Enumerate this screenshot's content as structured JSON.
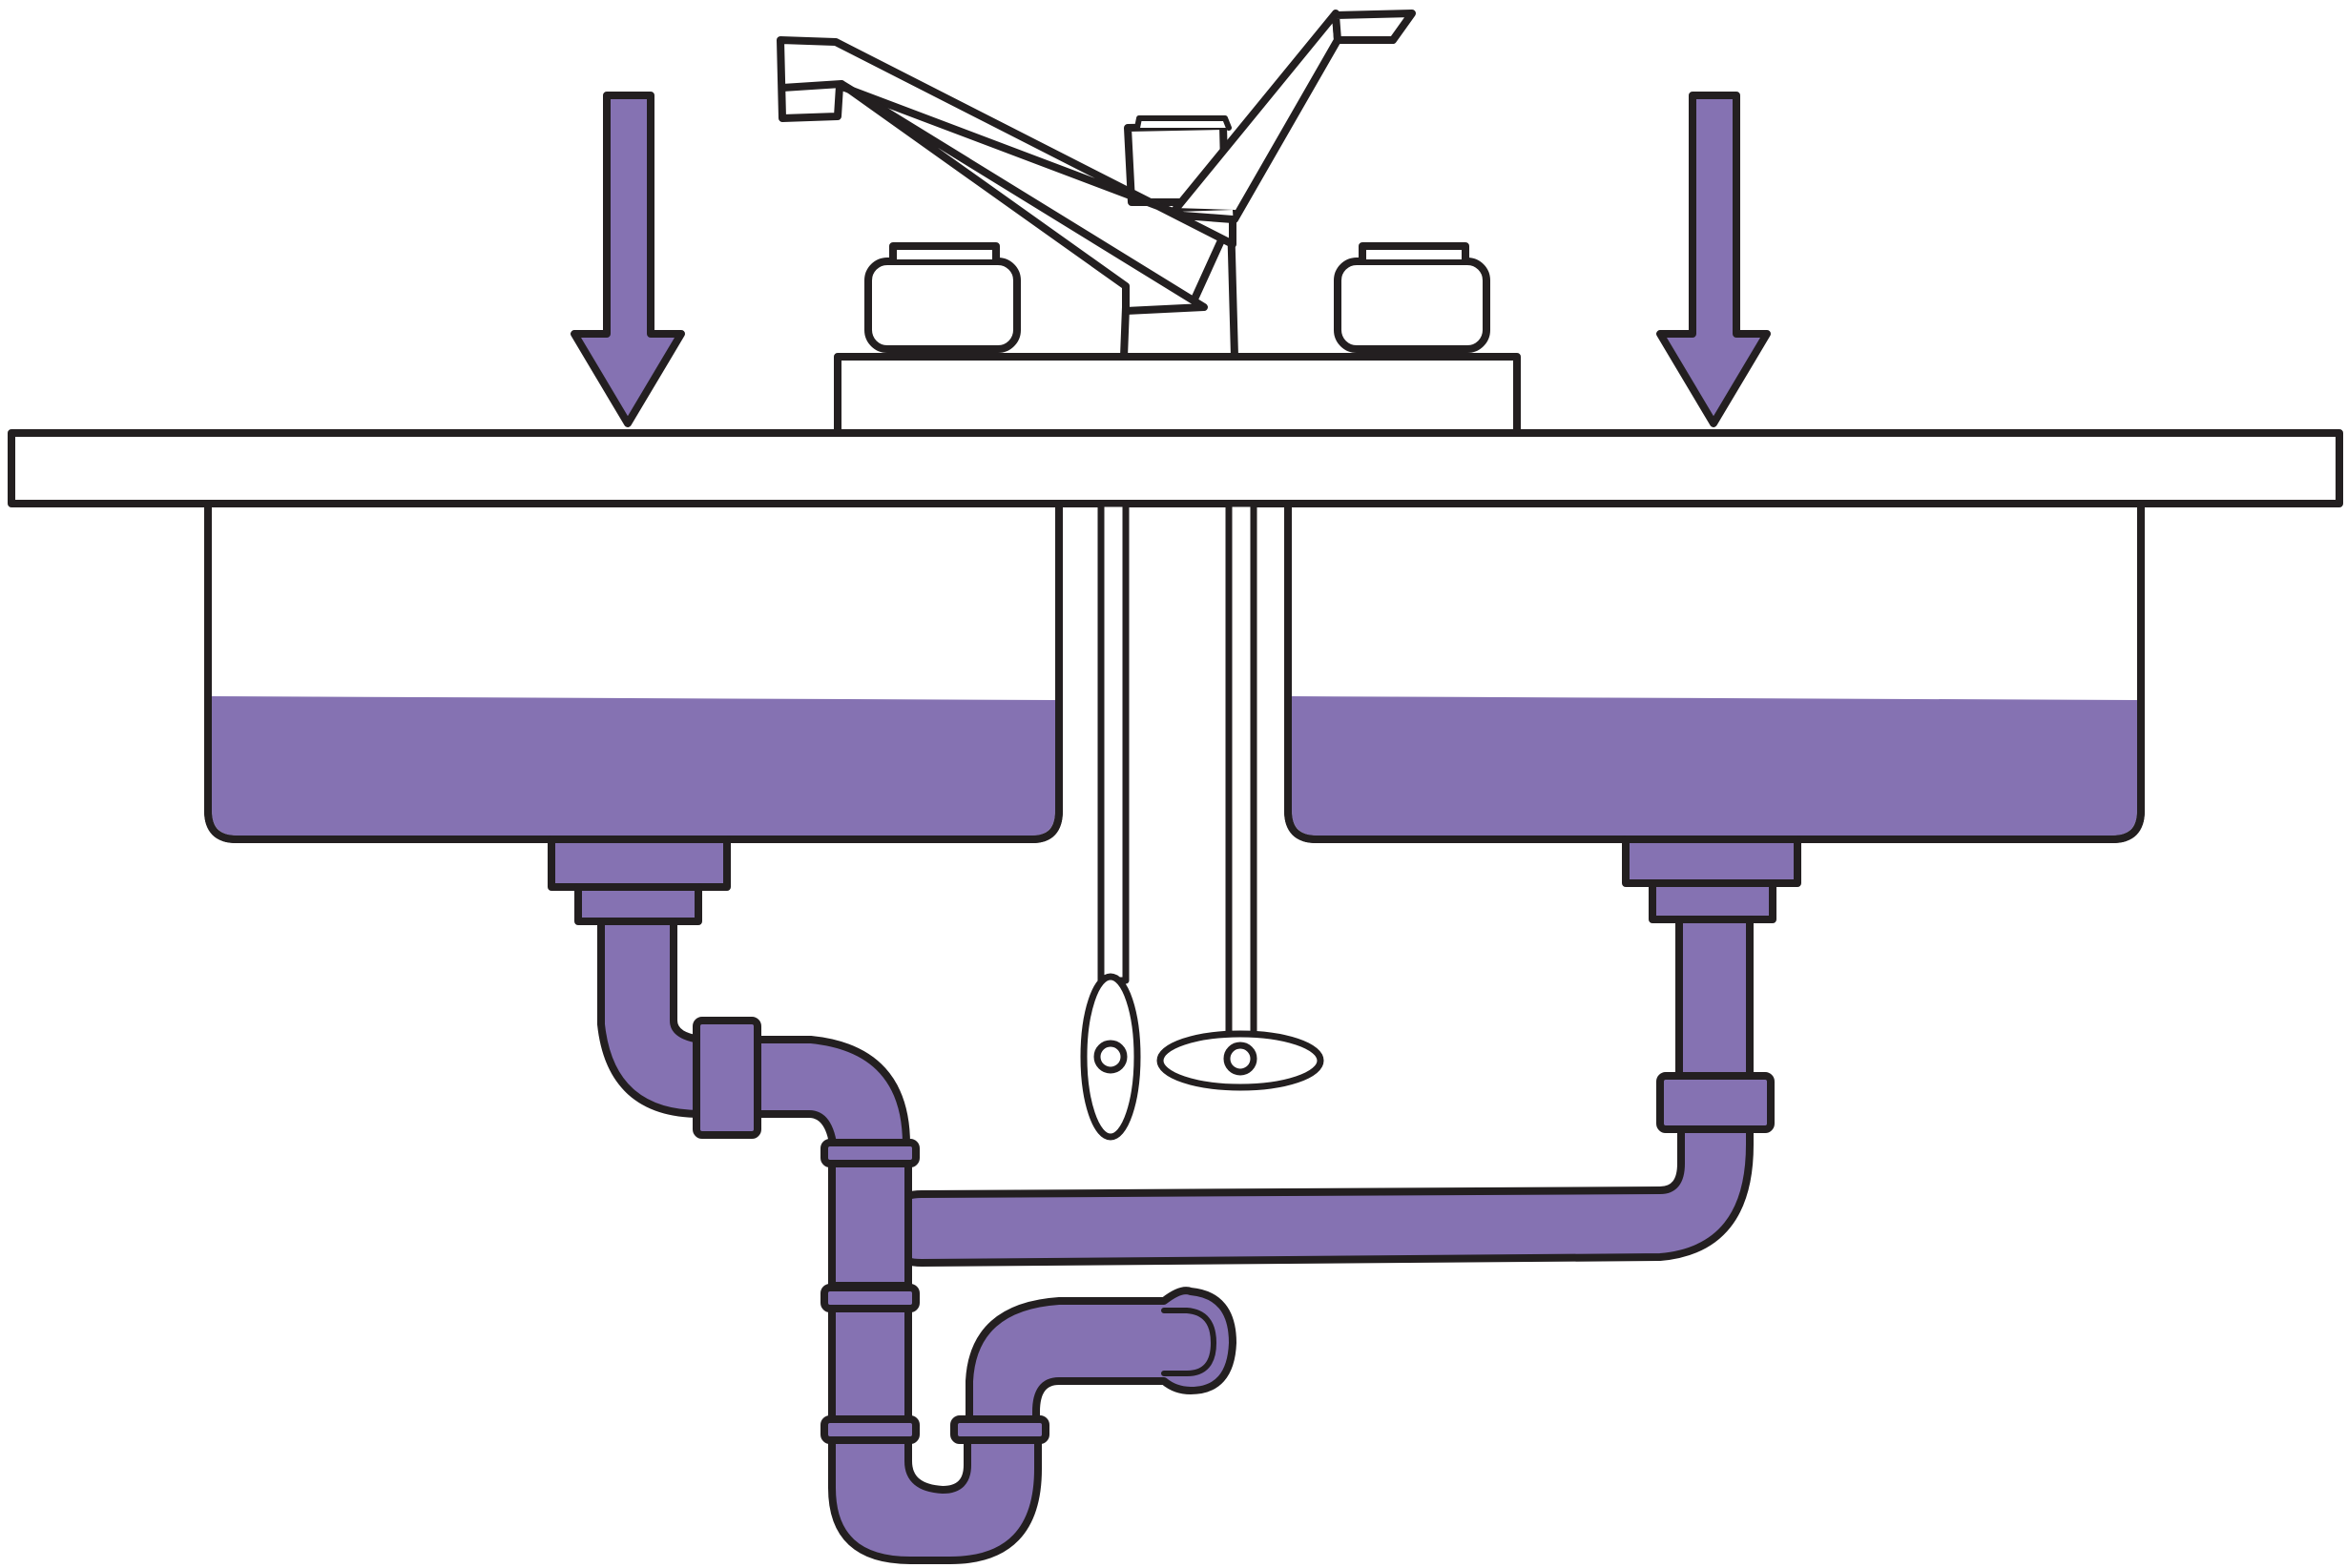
{
  "diagram": {
    "description_text": "",
    "colors": {
      "water": "#8572B2",
      "outline": "#231F20",
      "background": "#FFFFFF"
    },
    "components": [
      {
        "name": "left-flow-arrow",
        "icon": "arrow-down-icon"
      },
      {
        "name": "right-flow-arrow",
        "icon": "arrow-down-icon"
      },
      {
        "name": "faucet",
        "icon": "faucet-icon"
      },
      {
        "name": "left-handle",
        "icon": "handle-icon"
      },
      {
        "name": "right-handle",
        "icon": "handle-icon"
      },
      {
        "name": "countertop"
      },
      {
        "name": "left-basin",
        "state": "partially-filled"
      },
      {
        "name": "right-basin",
        "state": "partially-filled"
      },
      {
        "name": "supply-lines"
      },
      {
        "name": "left-shutoff-valve",
        "icon": "valve-icon"
      },
      {
        "name": "right-shutoff-valve",
        "icon": "valve-icon"
      },
      {
        "name": "left-drain-pipe"
      },
      {
        "name": "right-drain-pipe"
      },
      {
        "name": "p-trap"
      },
      {
        "name": "wall-outlet-pipe"
      }
    ]
  }
}
